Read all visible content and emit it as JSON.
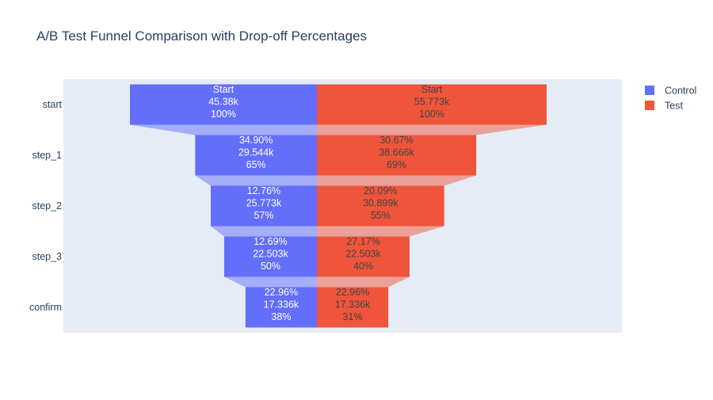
{
  "chart_data": {
    "type": "funnel",
    "title": "A/B Test Funnel Comparison with Drop-off Percentages",
    "categories": [
      "start",
      "step_1",
      "step_2",
      "step_3",
      "confirm"
    ],
    "series": [
      {
        "name": "Control",
        "color": "#636efa",
        "values": [
          45380,
          29544,
          25773,
          22503,
          17336
        ],
        "labels": [
          [
            "Start",
            "45.38k",
            "100%"
          ],
          [
            "34.90%",
            "29.544k",
            "65%"
          ],
          [
            "12.76%",
            "25.773k",
            "57%"
          ],
          [
            "12.69%",
            "22.503k",
            "50%"
          ],
          [
            "22.96%",
            "17.336k",
            "38%"
          ]
        ]
      },
      {
        "name": "Test",
        "color": "#ef553b",
        "values": [
          55773,
          38666,
          30899,
          22503,
          17336
        ],
        "labels": [
          [
            "Start",
            "55.773k",
            "100%"
          ],
          [
            "30.67%",
            "38.666k",
            "69%"
          ],
          [
            "20.09%",
            "30.899k",
            "55%"
          ],
          [
            "27.17%",
            "22.503k",
            "40%"
          ],
          [
            "22.96%",
            "17.336k",
            "31%"
          ]
        ]
      }
    ],
    "legend_position": "top-right",
    "plot_background": "#e5ecf6"
  }
}
